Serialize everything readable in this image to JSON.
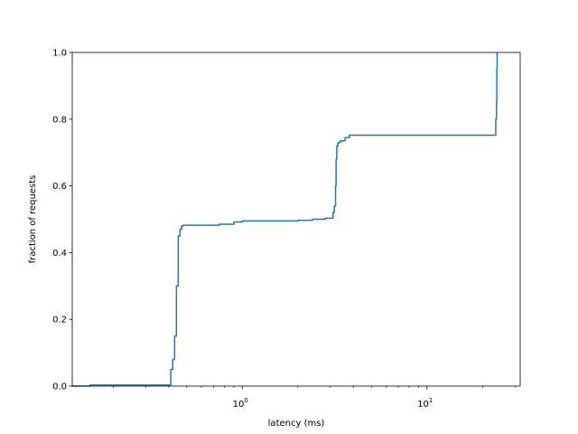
{
  "chart_data": {
    "type": "line",
    "title": "",
    "xlabel": "latency (ms)",
    "ylabel": "fraction of requests",
    "xscale": "log",
    "xlim": [
      0.12,
      32
    ],
    "ylim": [
      0.0,
      1.0
    ],
    "grid": false,
    "legend": "none",
    "x_ticks": [
      {
        "value": 1,
        "base": "10",
        "exp": "0"
      },
      {
        "value": 10,
        "base": "10",
        "exp": "1"
      }
    ],
    "y_ticks": [
      {
        "value": 0.0,
        "label": "0.0"
      },
      {
        "value": 0.2,
        "label": "0.2"
      },
      {
        "value": 0.4,
        "label": "0.4"
      },
      {
        "value": 0.6,
        "label": "0.6"
      },
      {
        "value": 0.8,
        "label": "0.8"
      },
      {
        "value": 1.0,
        "label": "1.0"
      }
    ],
    "series": [
      {
        "color": "#1f77b4",
        "x": [
          0.12,
          0.15,
          0.41,
          0.41,
          0.42,
          0.43,
          0.44,
          0.44,
          0.45,
          0.45,
          0.46,
          0.46,
          0.47,
          0.48,
          0.6,
          0.75,
          0.9,
          1.0,
          1.5,
          2.0,
          2.4,
          2.8,
          3.1,
          3.15,
          3.2,
          3.22,
          3.25,
          3.3,
          3.4,
          3.6,
          3.8,
          5.0,
          10.0,
          20.0,
          23.5,
          23.6,
          23.8,
          23.9,
          24.0
        ],
        "y": [
          0.0,
          0.003,
          0.003,
          0.05,
          0.08,
          0.15,
          0.2,
          0.3,
          0.4,
          0.45,
          0.46,
          0.47,
          0.48,
          0.482,
          0.482,
          0.485,
          0.492,
          0.495,
          0.495,
          0.497,
          0.5,
          0.503,
          0.52,
          0.54,
          0.6,
          0.68,
          0.72,
          0.73,
          0.735,
          0.745,
          0.752,
          0.752,
          0.752,
          0.752,
          0.752,
          0.8,
          0.85,
          0.95,
          1.0
        ]
      }
    ]
  }
}
